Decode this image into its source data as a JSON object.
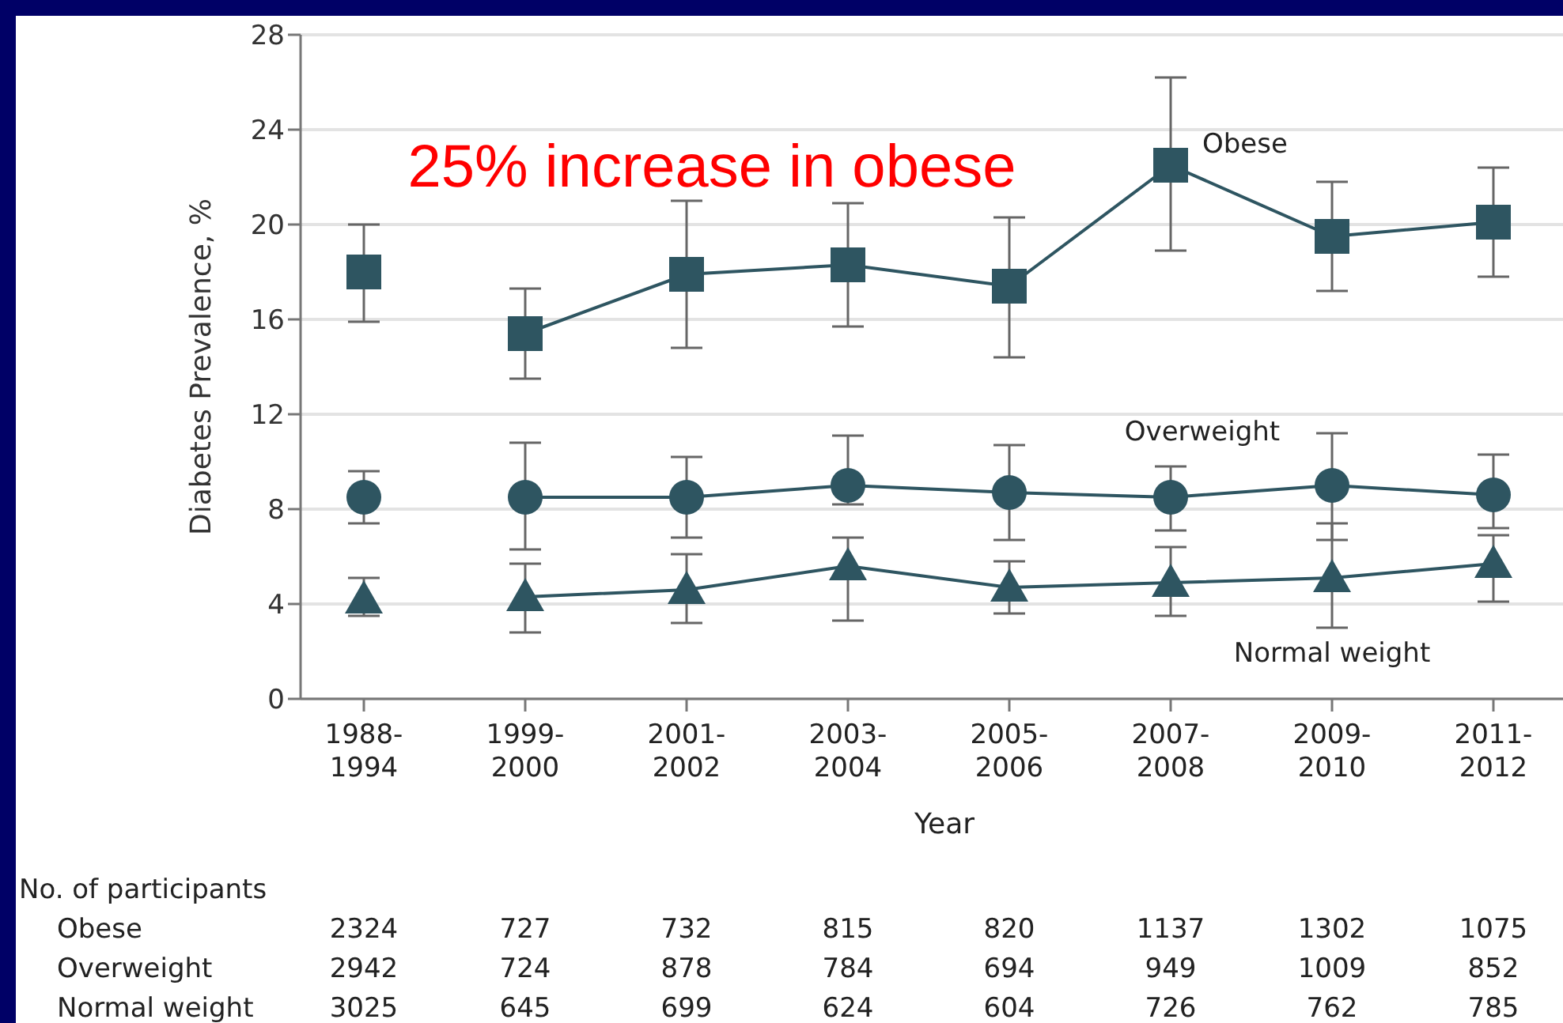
{
  "chart_data": {
    "type": "line",
    "xlabel": "Year",
    "ylabel": "Diabetes Prevalence, %",
    "categories": [
      "1988-1994",
      "1999-2000",
      "2001-2002",
      "2003-2004",
      "2005-2006",
      "2007-2008",
      "2009-2010",
      "2011-2012"
    ],
    "ylim": [
      0,
      28
    ],
    "yticks": [
      0,
      4,
      8,
      12,
      16,
      20,
      24,
      28
    ],
    "grid": "y",
    "series": [
      {
        "name": "Obese",
        "color": "#2e5561",
        "marker": "square",
        "values": [
          null,
          15.4,
          17.9,
          18.3,
          17.4,
          22.5,
          19.5,
          20.1
        ],
        "errors": [
          null,
          [
            13.5,
            17.3
          ],
          [
            14.8,
            21.0
          ],
          [
            15.7,
            20.9
          ],
          [
            14.4,
            20.3
          ],
          [
            18.9,
            26.2
          ],
          [
            17.2,
            21.8
          ],
          [
            17.8,
            22.4
          ]
        ]
      },
      {
        "type": "scatter",
        "color": "#2e5561",
        "marker": "square",
        "values": [
          18,
          null,
          null,
          null,
          null,
          null,
          null,
          null
        ],
        "errors": [
          [
            15.9,
            20
          ],
          null,
          null,
          null,
          null,
          null,
          null,
          null
        ]
      },
      {
        "name": "Overweight",
        "color": "#2e5561",
        "marker": "circle",
        "values": [
          null,
          8.5,
          8.5,
          9.0,
          8.7,
          8.5,
          9.0,
          8.6
        ],
        "errors": [
          null,
          [
            6.3,
            10.8
          ],
          [
            6.8,
            10.2
          ],
          [
            8.2,
            11.1
          ],
          [
            6.7,
            10.7
          ],
          [
            7.1,
            9.8
          ],
          [
            6.7,
            11.2
          ],
          [
            7.2,
            10.3
          ]
        ]
      },
      {
        "type": "scatter",
        "color": "#2e5561",
        "marker": "circle",
        "values": [
          8.5,
          null,
          null,
          null,
          null,
          null,
          null,
          null
        ],
        "errors": [
          [
            7.4,
            9.6
          ],
          null,
          null,
          null,
          null,
          null,
          null,
          null
        ]
      },
      {
        "name": "Normal weight",
        "color": "#2e5561",
        "marker": "triangle",
        "values": [
          null,
          4.3,
          4.6,
          5.6,
          4.7,
          4.9,
          5.1,
          5.7
        ],
        "errors": [
          null,
          [
            2.8,
            5.7
          ],
          [
            3.2,
            6.1
          ],
          [
            3.3,
            6.8
          ],
          [
            3.6,
            5.8
          ],
          [
            3.5,
            6.4
          ],
          [
            3.0,
            7.4
          ],
          [
            4.1,
            6.9
          ]
        ]
      },
      {
        "type": "scatter",
        "color": "#2e5561",
        "marker": "triangle",
        "values": [
          4.2,
          null,
          null,
          null,
          null,
          null,
          null,
          null
        ],
        "errors": [
          [
            3.5,
            5.1
          ],
          null,
          null,
          null,
          null,
          null,
          null,
          null
        ]
      }
    ],
    "annotations": [
      "25% increase in obese",
      "No. of participants",
      "Obese",
      "2324",
      "727",
      "732",
      "815",
      "820",
      "1137",
      "1302",
      "1075",
      "Overweight",
      "2942",
      "724",
      "878",
      "784",
      "694",
      "949",
      "1009",
      "852",
      "Normal weight",
      "3025",
      "645",
      "699",
      "624",
      "604",
      "726",
      "762",
      "785"
    ]
  }
}
